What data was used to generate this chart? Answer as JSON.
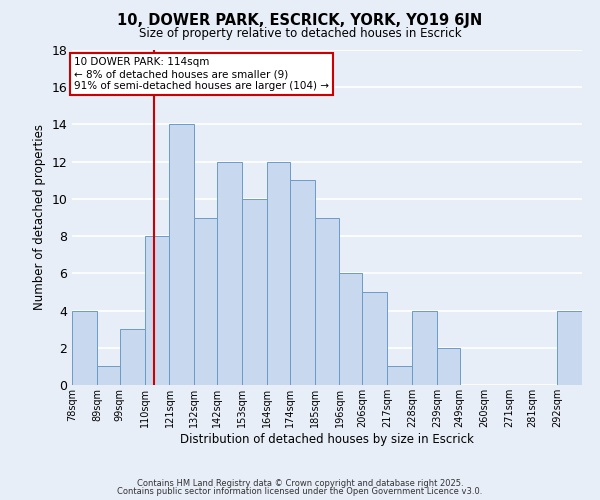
{
  "title": "10, DOWER PARK, ESCRICK, YORK, YO19 6JN",
  "subtitle": "Size of property relative to detached houses in Escrick",
  "xlabel": "Distribution of detached houses by size in Escrick",
  "ylabel": "Number of detached properties",
  "bar_color": "#c8d9ef",
  "bar_edge_color": "#6b9bc7",
  "background_color": "#e8eef8",
  "bins": [
    78,
    89,
    99,
    110,
    121,
    132,
    142,
    153,
    164,
    174,
    185,
    196,
    206,
    217,
    228,
    239,
    249,
    260,
    271,
    281,
    292,
    303
  ],
  "counts": [
    4,
    1,
    3,
    8,
    14,
    9,
    12,
    10,
    12,
    11,
    9,
    6,
    5,
    1,
    4,
    2,
    0,
    0,
    0,
    0,
    4
  ],
  "tick_labels": [
    "78sqm",
    "89sqm",
    "99sqm",
    "110sqm",
    "121sqm",
    "132sqm",
    "142sqm",
    "153sqm",
    "164sqm",
    "174sqm",
    "185sqm",
    "196sqm",
    "206sqm",
    "217sqm",
    "228sqm",
    "239sqm",
    "249sqm",
    "260sqm",
    "271sqm",
    "281sqm",
    "292sqm"
  ],
  "vline_x": 114,
  "vline_color": "#cc0000",
  "ylim": [
    0,
    18
  ],
  "yticks": [
    0,
    2,
    4,
    6,
    8,
    10,
    12,
    14,
    16,
    18
  ],
  "annotation_line1": "10 DOWER PARK: 114sqm",
  "annotation_line2": "← 8% of detached houses are smaller (9)",
  "annotation_line3": "91% of semi-detached houses are larger (104) →",
  "annotation_box_color": "white",
  "annotation_box_edge": "#cc0000",
  "footer1": "Contains HM Land Registry data © Crown copyright and database right 2025.",
  "footer2": "Contains public sector information licensed under the Open Government Licence v3.0."
}
